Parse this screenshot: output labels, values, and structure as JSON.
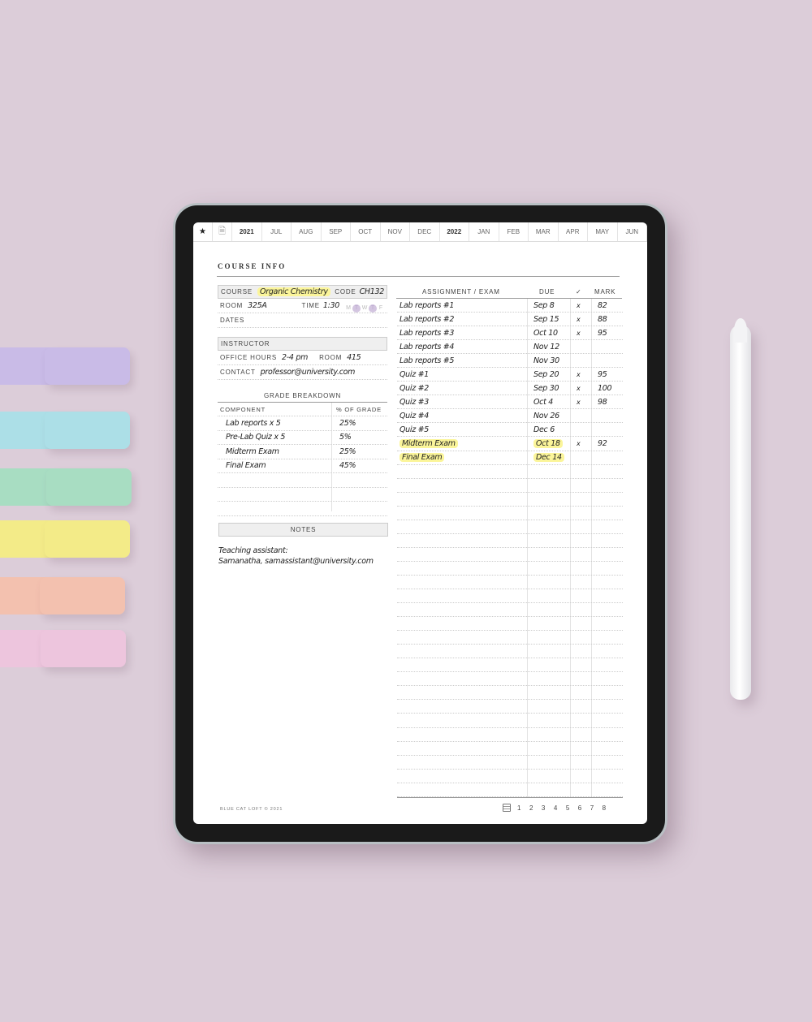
{
  "nav": {
    "star_icon": "star-icon",
    "doc_icon": "document-icon",
    "tabs": [
      "2021",
      "JUL",
      "AUG",
      "SEP",
      "OCT",
      "NOV",
      "DEC",
      "2022",
      "JAN",
      "FEB",
      "MAR",
      "APR",
      "MAY",
      "JUN"
    ]
  },
  "page": {
    "title": "COURSE INFO",
    "course": {
      "label": "COURSE",
      "value": "Organic Chemistry",
      "code_label": "CODE",
      "code": "CH132",
      "room_label": "ROOM",
      "room": "325A",
      "time_label": "TIME",
      "time": "1:30",
      "days": [
        "M",
        "T",
        "W",
        "T",
        "F"
      ],
      "days_selected": [
        false,
        true,
        false,
        true,
        false
      ],
      "dates_label": "DATES"
    },
    "instructor": {
      "header": "INSTRUCTOR",
      "office_hours_label": "OFFICE HOURS",
      "office_hours": "2-4 pm",
      "room_label": "ROOM",
      "room": "415",
      "contact_label": "CONTACT",
      "contact": "professor@university.com"
    },
    "grade_breakdown": {
      "header": "GRADE BREAKDOWN",
      "col_component": "COMPONENT",
      "col_percent": "% OF GRADE",
      "rows": [
        {
          "component": "Lab reports x 5",
          "percent": "25%"
        },
        {
          "component": "Pre-Lab Quiz x 5",
          "percent": "5%"
        },
        {
          "component": "Midterm Exam",
          "percent": "25%"
        },
        {
          "component": "Final Exam",
          "percent": "45%"
        }
      ]
    },
    "notes": {
      "header": "NOTES",
      "lines": [
        "Teaching assistant:",
        "Samanatha, samassistant@university.com"
      ]
    },
    "assignments": {
      "col_name": "ASSIGNMENT / EXAM",
      "col_due": "DUE",
      "col_check": "✓",
      "col_mark": "MARK",
      "rows": [
        {
          "name": "Lab reports #1",
          "due": "Sep 8",
          "check": "x",
          "mark": "82"
        },
        {
          "name": "Lab reports #2",
          "due": "Sep 15",
          "check": "x",
          "mark": "88"
        },
        {
          "name": "Lab reports #3",
          "due": "Oct 10",
          "check": "x",
          "mark": "95"
        },
        {
          "name": "Lab reports #4",
          "due": "Nov 12",
          "check": "",
          "mark": ""
        },
        {
          "name": "Lab reports #5",
          "due": "Nov 30",
          "check": "",
          "mark": ""
        },
        {
          "name": "Quiz #1",
          "due": "Sep 20",
          "check": "x",
          "mark": "95"
        },
        {
          "name": "Quiz #2",
          "due": "Sep 30",
          "check": "x",
          "mark": "100"
        },
        {
          "name": "Quiz #3",
          "due": "Oct 4",
          "check": "x",
          "mark": "98"
        },
        {
          "name": "Quiz #4",
          "due": "Nov 26",
          "check": "",
          "mark": ""
        },
        {
          "name": "Quiz #5",
          "due": "Dec 6",
          "check": "",
          "mark": ""
        },
        {
          "name": "Midterm Exam",
          "due": "Oct 18",
          "check": "x",
          "mark": "92",
          "highlight": true
        },
        {
          "name": "Final Exam",
          "due": "Dec 14",
          "check": "",
          "mark": "",
          "highlight": true
        }
      ]
    },
    "footer": {
      "brand": "BLUE CAT LOFT © 2021",
      "pages_icon": "stack-icon",
      "pages": [
        "1",
        "2",
        "3",
        "4",
        "5",
        "6",
        "7",
        "8"
      ]
    }
  },
  "colors": {
    "background": "#dccdd9",
    "highlight": "#fbf59a",
    "day_selected": "#d3c5e0",
    "tapes": [
      "#c6b8ea",
      "#a4e3ea",
      "#9fe0bf",
      "#f8f17a",
      "#f8bfa8",
      "#f0c4de"
    ]
  }
}
